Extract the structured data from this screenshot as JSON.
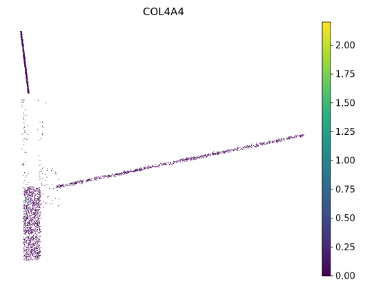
{
  "chart_data": {
    "type": "scatter",
    "title": "COL4A4",
    "xlabel": "",
    "ylabel": "",
    "axes_visible": false,
    "grid": false,
    "colormap": "viridis",
    "colorbar": {
      "range": [
        0.0,
        2.2
      ],
      "tick_labels": [
        "0.00",
        "0.25",
        "0.50",
        "0.75",
        "1.00",
        "1.25",
        "1.50",
        "1.75",
        "2.00"
      ],
      "tick_values": [
        0.0,
        0.25,
        0.5,
        0.75,
        1.0,
        1.25,
        1.5,
        1.75,
        2.0
      ],
      "placement": "right"
    },
    "point_color_dominant": "#440154",
    "highlight_color": "#21918c"
  }
}
